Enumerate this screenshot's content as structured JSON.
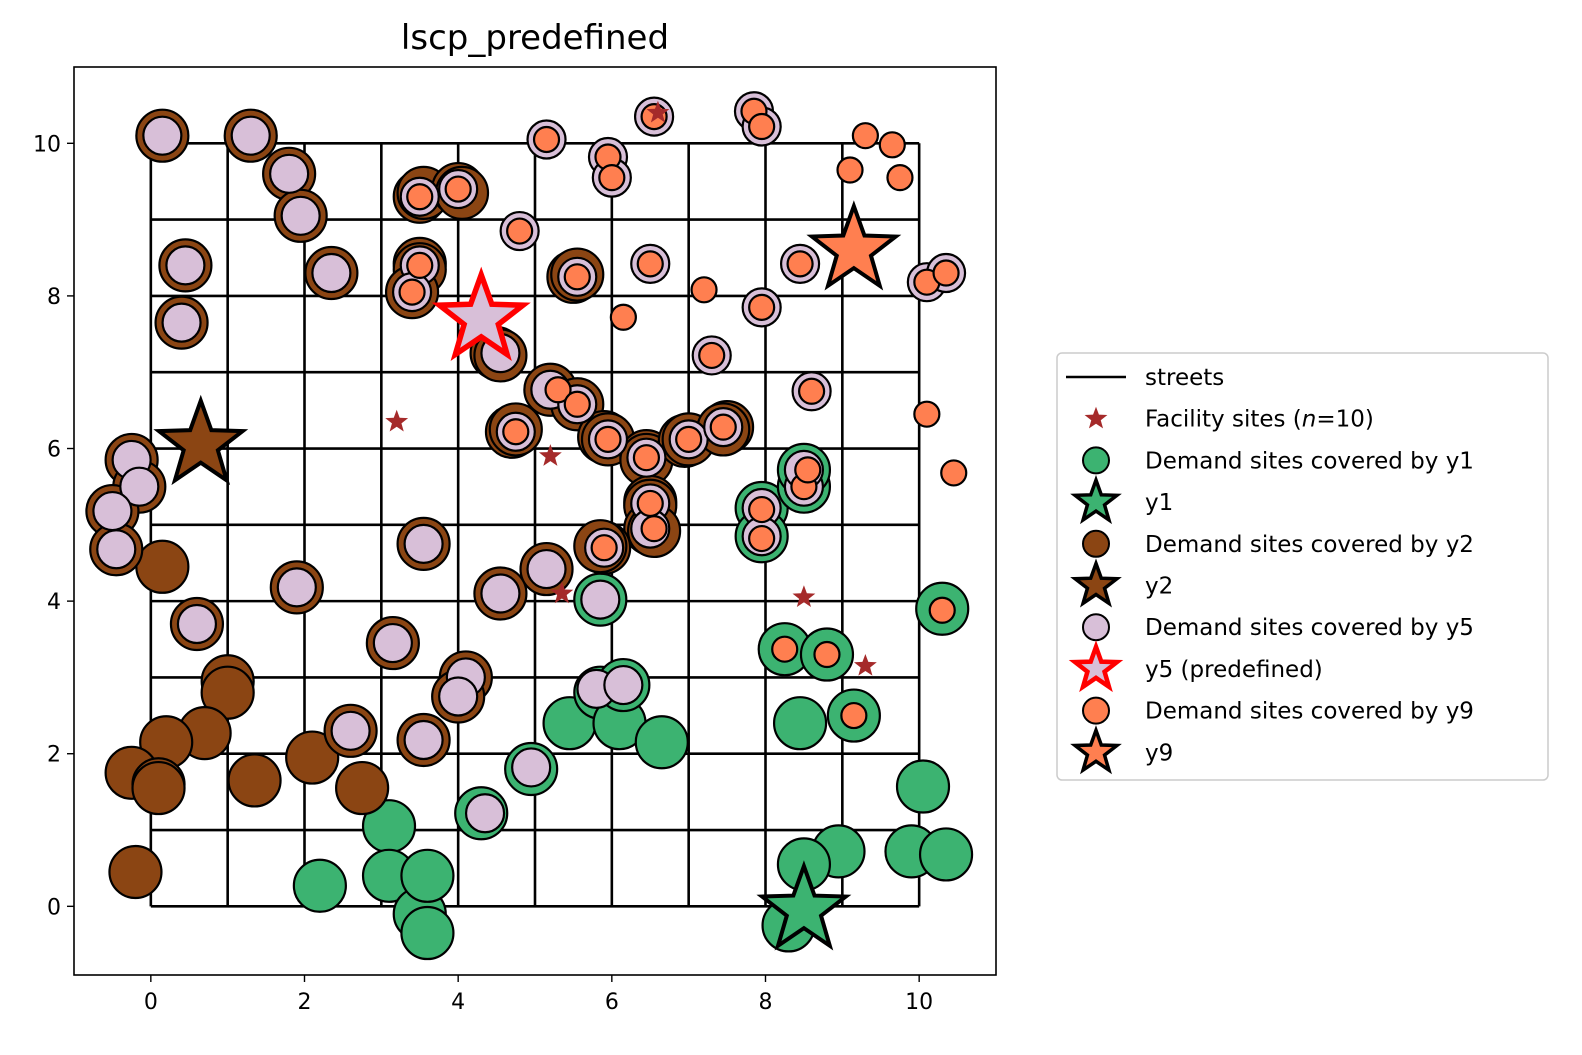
{
  "chart_data": {
    "type": "scatter",
    "title": "lscp_predefined",
    "xlabel": "",
    "ylabel": "",
    "xlim": [
      -1.0,
      11.0
    ],
    "ylim": [
      -0.9,
      11.0
    ],
    "xticks": [
      0,
      2,
      4,
      6,
      8,
      10
    ],
    "yticks": [
      0,
      2,
      4,
      6,
      8,
      10
    ],
    "x_tick_labels": [
      "0",
      "2",
      "4",
      "6",
      "8",
      "10"
    ],
    "y_tick_labels": [
      "0",
      "2",
      "4",
      "6",
      "8",
      "10"
    ],
    "grid": false,
    "legend_position": "right",
    "streets": {
      "x_lines": [
        0,
        1,
        2,
        3,
        4,
        5,
        6,
        7,
        8,
        9,
        10
      ],
      "y_lines": [
        0,
        1,
        2,
        3,
        4,
        5,
        6,
        7,
        8,
        9,
        10
      ],
      "range": [
        0,
        10
      ]
    },
    "colors": {
      "y1": "#3cb371",
      "y2": "#8b4513",
      "y5": "#d8bfd8",
      "y9": "#ff7f50",
      "facility": "#a52a2a",
      "predefined_edge": "#ff0000",
      "streets": "#000000"
    },
    "legend": [
      {
        "label": "streets",
        "marker": "line",
        "color": "#000000"
      },
      {
        "label": "Facility sites (n=10)",
        "label_prefix": "Facility sites (",
        "label_italic": "n",
        "label_suffix": "=10)",
        "marker": "small-star",
        "color": "#a52a2a"
      },
      {
        "label": "Demand sites covered by y1",
        "marker": "circle",
        "color": "#3cb371"
      },
      {
        "label": "y1",
        "marker": "star",
        "color": "#3cb371",
        "edge": "#000000"
      },
      {
        "label": "Demand sites covered by y2",
        "marker": "circle",
        "color": "#8b4513"
      },
      {
        "label": "y2",
        "marker": "star",
        "color": "#8b4513",
        "edge": "#000000"
      },
      {
        "label": "Demand sites covered by y5",
        "marker": "circle",
        "color": "#d8bfd8"
      },
      {
        "label": "y5 (predefined)",
        "marker": "star",
        "color": "#d8bfd8",
        "edge": "#ff0000"
      },
      {
        "label": "Demand sites covered by y9",
        "marker": "circle",
        "color": "#ff7f50"
      },
      {
        "label": "y9",
        "marker": "star",
        "color": "#ff7f50",
        "edge": "#000000"
      }
    ],
    "facility_sites": [
      [
        6.6,
        10.4
      ],
      [
        3.2,
        6.35
      ],
      [
        5.2,
        5.9
      ],
      [
        5.35,
        4.1
      ],
      [
        8.5,
        4.05
      ],
      [
        9.3,
        3.15
      ]
    ],
    "selected_facilities": [
      {
        "name": "y1",
        "x": 8.5,
        "y": -0.05,
        "color": "#3cb371",
        "edge": "#000000"
      },
      {
        "name": "y2",
        "x": 0.65,
        "y": 6.05,
        "color": "#8b4513",
        "edge": "#000000"
      },
      {
        "name": "y5 (predefined)",
        "x": 4.3,
        "y": 7.7,
        "color": "#d8bfd8",
        "edge": "#ff0000"
      },
      {
        "name": "y9",
        "x": 9.15,
        "y": 8.6,
        "color": "#ff7f50",
        "edge": "#000000"
      }
    ],
    "series": [
      {
        "name": "Demand sites covered by y1",
        "color": "#3cb371",
        "size": "large",
        "points": [
          [
            2.2,
            0.27
          ],
          [
            3.1,
            1.05
          ],
          [
            3.1,
            0.4
          ],
          [
            3.5,
            -0.1
          ],
          [
            3.6,
            0.4
          ],
          [
            3.6,
            -0.35
          ],
          [
            4.3,
            1.22
          ],
          [
            4.95,
            1.8
          ],
          [
            5.45,
            2.4
          ],
          [
            5.85,
            2.8
          ],
          [
            6.1,
            2.4
          ],
          [
            6.15,
            2.9
          ],
          [
            6.65,
            2.15
          ],
          [
            5.85,
            4.02
          ],
          [
            8.25,
            3.37
          ],
          [
            8.45,
            2.4
          ],
          [
            8.8,
            3.3
          ],
          [
            9.15,
            2.5
          ],
          [
            7.95,
            5.22
          ],
          [
            7.95,
            4.85
          ],
          [
            8.5,
            5.5
          ],
          [
            8.5,
            5.72
          ],
          [
            10.3,
            3.9
          ],
          [
            10.05,
            1.57
          ],
          [
            9.9,
            0.72
          ],
          [
            10.35,
            0.68
          ],
          [
            8.95,
            0.72
          ],
          [
            8.5,
            0.55
          ],
          [
            8.3,
            -0.25
          ]
        ]
      },
      {
        "name": "Demand sites covered by y2",
        "color": "#8b4513",
        "size": "large",
        "points": [
          [
            0.15,
            4.45
          ],
          [
            1.0,
            2.95
          ],
          [
            1.0,
            2.8
          ],
          [
            0.7,
            2.27
          ],
          [
            0.2,
            2.15
          ],
          [
            -0.25,
            1.75
          ],
          [
            0.1,
            1.6
          ],
          [
            0.1,
            1.55
          ],
          [
            1.35,
            1.65
          ],
          [
            2.1,
            1.95
          ],
          [
            2.75,
            1.55
          ],
          [
            -0.2,
            0.45
          ],
          [
            0.15,
            10.1
          ],
          [
            1.3,
            10.1
          ],
          [
            1.8,
            9.6
          ],
          [
            1.95,
            9.05
          ],
          [
            2.35,
            8.3
          ],
          [
            0.45,
            8.4
          ],
          [
            0.4,
            7.65
          ],
          [
            -0.25,
            5.85
          ],
          [
            -0.15,
            5.5
          ],
          [
            -0.5,
            5.18
          ],
          [
            -0.45,
            4.68
          ],
          [
            0.6,
            3.7
          ],
          [
            1.9,
            4.18
          ],
          [
            3.55,
            4.75
          ],
          [
            3.15,
            3.45
          ],
          [
            4.1,
            3.0
          ],
          [
            4.0,
            2.75
          ],
          [
            2.6,
            2.3
          ],
          [
            3.55,
            2.18
          ],
          [
            3.5,
            9.3
          ],
          [
            3.55,
            9.35
          ],
          [
            4.0,
            9.4
          ],
          [
            4.05,
            9.35
          ],
          [
            3.5,
            8.42
          ],
          [
            3.5,
            8.35
          ],
          [
            3.4,
            8.05
          ],
          [
            4.5,
            7.25
          ],
          [
            4.55,
            7.22
          ],
          [
            4.55,
            4.1
          ],
          [
            5.15,
            4.42
          ],
          [
            5.5,
            8.25
          ],
          [
            5.55,
            8.28
          ],
          [
            4.7,
            6.22
          ],
          [
            4.75,
            6.25
          ],
          [
            5.2,
            6.77
          ],
          [
            5.55,
            6.58
          ],
          [
            5.9,
            6.15
          ],
          [
            5.95,
            6.12
          ],
          [
            6.45,
            5.9
          ],
          [
            6.45,
            5.85
          ],
          [
            6.5,
            5.3
          ],
          [
            6.5,
            5.25
          ],
          [
            6.5,
            4.95
          ],
          [
            6.55,
            4.92
          ],
          [
            6.95,
            6.1
          ],
          [
            7.0,
            6.12
          ],
          [
            7.5,
            6.28
          ],
          [
            7.45,
            6.25
          ],
          [
            5.9,
            4.7
          ],
          [
            5.85,
            4.72
          ]
        ]
      },
      {
        "name": "Demand sites covered by y5",
        "color": "#d8bfd8",
        "size": "medium",
        "points": [
          [
            0.15,
            10.1
          ],
          [
            1.3,
            10.1
          ],
          [
            1.8,
            9.6
          ],
          [
            1.95,
            9.05
          ],
          [
            2.35,
            8.3
          ],
          [
            0.45,
            8.4
          ],
          [
            0.4,
            7.65
          ],
          [
            -0.25,
            5.85
          ],
          [
            -0.15,
            5.5
          ],
          [
            -0.5,
            5.18
          ],
          [
            -0.45,
            4.68
          ],
          [
            0.6,
            3.7
          ],
          [
            1.9,
            4.18
          ],
          [
            3.55,
            4.75
          ],
          [
            3.15,
            3.45
          ],
          [
            4.1,
            3.0
          ],
          [
            4.0,
            2.75
          ],
          [
            2.6,
            2.3
          ],
          [
            3.55,
            2.18
          ],
          [
            4.55,
            4.1
          ],
          [
            5.15,
            4.42
          ],
          [
            5.85,
            4.02
          ],
          [
            5.8,
            2.85
          ],
          [
            6.15,
            2.9
          ],
          [
            4.95,
            1.82
          ],
          [
            4.35,
            1.22
          ],
          [
            3.5,
            9.3
          ],
          [
            4.0,
            9.4
          ],
          [
            3.5,
            8.4
          ],
          [
            3.4,
            8.05
          ],
          [
            4.55,
            7.25
          ],
          [
            5.15,
            10.05
          ],
          [
            5.95,
            9.82
          ],
          [
            6.0,
            9.55
          ],
          [
            4.8,
            8.85
          ],
          [
            5.55,
            8.25
          ],
          [
            6.5,
            8.42
          ],
          [
            6.55,
            10.35
          ],
          [
            7.85,
            10.42
          ],
          [
            7.95,
            10.22
          ],
          [
            8.45,
            8.42
          ],
          [
            7.95,
            7.85
          ],
          [
            7.3,
            7.22
          ],
          [
            8.6,
            6.75
          ],
          [
            10.1,
            8.18
          ],
          [
            10.35,
            8.3
          ],
          [
            4.75,
            6.22
          ],
          [
            5.2,
            6.77
          ],
          [
            5.55,
            6.58
          ],
          [
            5.95,
            6.12
          ],
          [
            6.45,
            5.88
          ],
          [
            6.5,
            5.28
          ],
          [
            6.5,
            4.95
          ],
          [
            7.0,
            6.12
          ],
          [
            7.45,
            6.28
          ],
          [
            5.9,
            4.7
          ],
          [
            7.95,
            5.22
          ],
          [
            7.95,
            4.85
          ],
          [
            8.5,
            5.5
          ],
          [
            8.5,
            5.72
          ]
        ]
      },
      {
        "name": "Demand sites covered by y9",
        "color": "#ff7f50",
        "size": "small",
        "points": [
          [
            3.5,
            9.3
          ],
          [
            4.0,
            9.4
          ],
          [
            3.5,
            8.4
          ],
          [
            3.4,
            8.05
          ],
          [
            4.8,
            8.85
          ],
          [
            5.15,
            10.05
          ],
          [
            5.95,
            9.82
          ],
          [
            6.0,
            9.55
          ],
          [
            5.55,
            8.25
          ],
          [
            6.5,
            8.42
          ],
          [
            6.15,
            7.72
          ],
          [
            6.55,
            10.35
          ],
          [
            7.85,
            10.42
          ],
          [
            7.95,
            10.22
          ],
          [
            7.2,
            8.08
          ],
          [
            7.95,
            7.85
          ],
          [
            7.3,
            7.22
          ],
          [
            8.45,
            8.42
          ],
          [
            9.3,
            10.1
          ],
          [
            9.65,
            9.98
          ],
          [
            9.1,
            9.65
          ],
          [
            9.75,
            9.55
          ],
          [
            10.1,
            8.18
          ],
          [
            10.35,
            8.3
          ],
          [
            8.6,
            6.75
          ],
          [
            10.1,
            6.45
          ],
          [
            10.45,
            5.68
          ],
          [
            4.75,
            6.22
          ],
          [
            5.3,
            6.77
          ],
          [
            5.55,
            6.58
          ],
          [
            5.95,
            6.12
          ],
          [
            6.45,
            5.88
          ],
          [
            6.5,
            5.28
          ],
          [
            6.55,
            4.95
          ],
          [
            7.0,
            6.12
          ],
          [
            7.45,
            6.28
          ],
          [
            5.9,
            4.7
          ],
          [
            7.95,
            5.2
          ],
          [
            7.95,
            4.82
          ],
          [
            8.5,
            5.5
          ],
          [
            8.55,
            5.72
          ],
          [
            10.3,
            3.88
          ],
          [
            8.25,
            3.37
          ],
          [
            8.8,
            3.3
          ],
          [
            9.15,
            2.5
          ]
        ]
      }
    ]
  }
}
